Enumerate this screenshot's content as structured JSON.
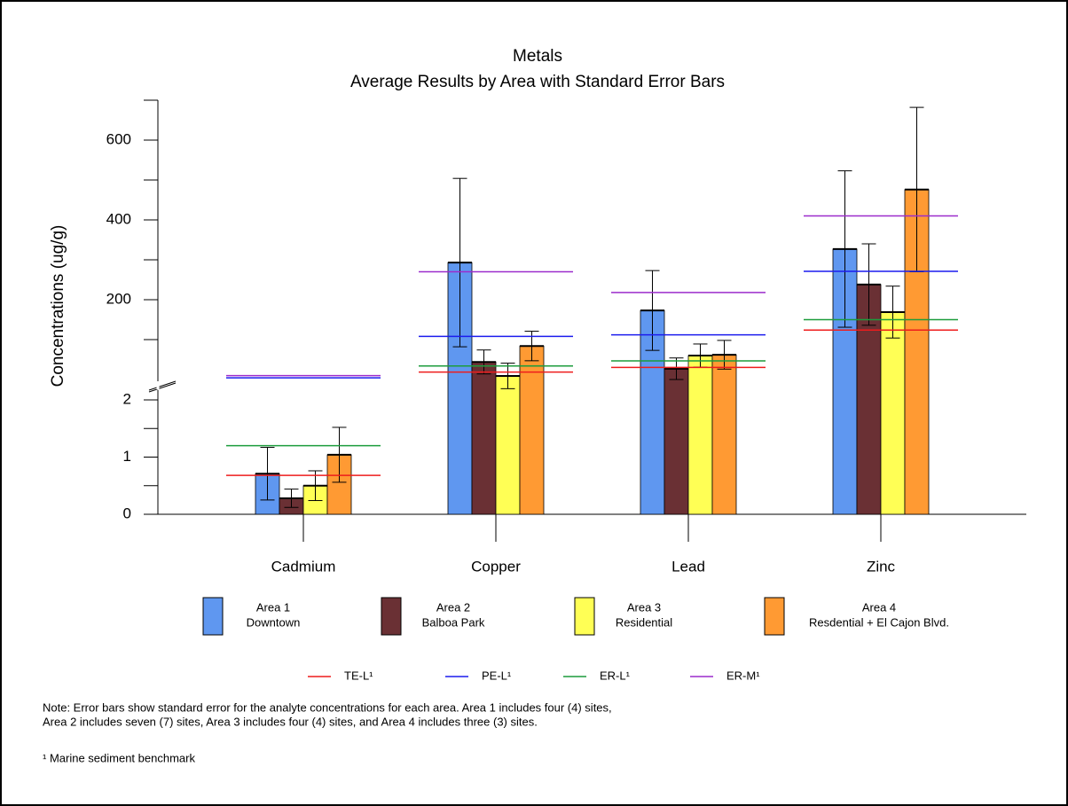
{
  "chart_data": {
    "type": "bar",
    "title": "Metals",
    "subtitle": "Average Results by Area with Standard Error Bars",
    "y_label": "Concentrations (ug/g)",
    "categories": [
      "Cadmium",
      "Copper",
      "Lead",
      "Zinc"
    ],
    "category_scales": [
      "lower",
      "upper",
      "upper",
      "upper"
    ],
    "lower_axis": {
      "ylim": [
        0,
        2
      ],
      "yticks": [
        0,
        1,
        2
      ],
      "minor_ticks": [
        0.5,
        1.5
      ]
    },
    "upper_axis": {
      "ylim": [
        0,
        700
      ],
      "yticks": [
        200,
        400,
        600
      ],
      "minor_ticks": [
        100,
        300,
        500,
        700
      ]
    },
    "axis_break": true,
    "series": [
      {
        "name": "Area 1",
        "description": "Downtown",
        "color": "#5f97f0",
        "values": [
          0.71,
          293,
          173,
          327
        ],
        "errors": [
          0.46,
          211,
          100,
          196
        ]
      },
      {
        "name": "Area 2",
        "description": "Balboa Park",
        "color": "#6a3034",
        "values": [
          0.28,
          44,
          27,
          238
        ],
        "errors": [
          0.16,
          30,
          27,
          102
        ]
      },
      {
        "name": "Area 3",
        "description": "Residential",
        "color": "#ffff55",
        "values": [
          0.5,
          9,
          60,
          169
        ],
        "errors": [
          0.26,
          32,
          29,
          65
        ]
      },
      {
        "name": "Area 4",
        "description": "Resdential + El Cajon Blvd.",
        "color": "#ff9a33",
        "values": [
          1.04,
          84,
          62,
          476
        ],
        "errors": [
          0.48,
          37,
          36,
          206
        ]
      }
    ],
    "reference_lines": [
      {
        "name": "TE-L¹",
        "color": "#ee1c1c",
        "values": [
          0.68,
          18.7,
          30.2,
          124
        ],
        "scales": [
          "lower",
          "upper",
          "upper",
          "upper"
        ]
      },
      {
        "name": "PE-L¹",
        "color": "#1c1cee",
        "values": [
          4.21,
          108,
          112,
          271
        ],
        "scales": [
          "upper",
          "upper",
          "upper",
          "upper"
        ]
      },
      {
        "name": "ER-L¹",
        "color": "#1c9c3c",
        "values": [
          1.2,
          34,
          46.7,
          150
        ],
        "scales": [
          "lower",
          "upper",
          "upper",
          "upper"
        ]
      },
      {
        "name": "ER-M¹",
        "color": "#9c2ccc",
        "values": [
          9.6,
          270,
          218,
          410
        ],
        "scales": [
          "upper",
          "upper",
          "upper",
          "upper"
        ]
      }
    ],
    "note": [
      "Note:  Error bars show standard error for the analyte concentrations for each area.  Area 1 includes four (4) sites,",
      "Area 2 includes seven (7) sites, Area 3 includes four (4) sites, and Area 4 includes three (3) sites."
    ],
    "footnote": "¹ Marine sediment benchmark"
  }
}
